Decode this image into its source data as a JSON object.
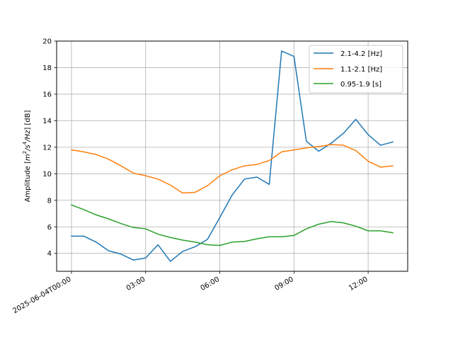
{
  "chart_data": {
    "type": "line",
    "title": "",
    "xlabel": "",
    "ylabel": "Amplitude [m²/s⁴/Hz] [dB]",
    "ylabel_parts": {
      "prefix": "Amplitude [",
      "m": "m",
      "exp2": "2",
      "s": "/s",
      "exp4": "4",
      "hz": "/Hz",
      "suffix": "] [dB]"
    },
    "grid": true,
    "legend_position": "top-right",
    "x_hours_range": [
      -0.6,
      13.6
    ],
    "ylim": [
      2.65,
      20
    ],
    "x_tick_hours": [
      0,
      3,
      6,
      9,
      12
    ],
    "x_tick_labels": [
      "2025-06-04T00:00",
      "03:00",
      "06:00",
      "09:00",
      "12:00"
    ],
    "y_ticks": [
      4,
      6,
      8,
      10,
      12,
      14,
      16,
      18,
      20
    ],
    "y_tick_labels": [
      "4",
      "6",
      "8",
      "10",
      "12",
      "14",
      "16",
      "18",
      "20"
    ],
    "x_hours": [
      0,
      0.5,
      1,
      1.5,
      2,
      2.5,
      3,
      3.5,
      4,
      4.5,
      5,
      5.5,
      6,
      6.5,
      7,
      7.5,
      8,
      8.5,
      9,
      9.5,
      10,
      10.5,
      11,
      11.5,
      12,
      12.5,
      13
    ],
    "series": [
      {
        "name": "2.1-4.2 [Hz]",
        "color": "#1f77b4",
        "values": [
          5.3,
          5.3,
          4.85,
          4.2,
          3.95,
          3.5,
          3.65,
          4.65,
          3.4,
          4.15,
          4.5,
          5.05,
          6.7,
          8.4,
          9.6,
          9.75,
          9.2,
          19.25,
          18.85,
          12.45,
          11.7,
          12.3,
          13.05,
          14.1,
          12.95,
          12.15,
          12.4
        ]
      },
      {
        "name": "1.1-2.1 [Hz]",
        "color": "#ff7f0e",
        "values": [
          11.8,
          11.65,
          11.45,
          11.1,
          10.6,
          10.05,
          9.85,
          9.6,
          9.15,
          8.55,
          8.6,
          9.1,
          9.85,
          10.3,
          10.6,
          10.7,
          11.0,
          11.65,
          11.8,
          11.95,
          12.05,
          12.2,
          12.15,
          11.75,
          10.95,
          10.5,
          10.6
        ]
      },
      {
        "name": "0.95-1.9 [s]",
        "color": "#2ca02c",
        "values": [
          7.65,
          7.3,
          6.9,
          6.6,
          6.25,
          5.95,
          5.85,
          5.45,
          5.2,
          5.0,
          4.85,
          4.65,
          4.6,
          4.85,
          4.9,
          5.1,
          5.25,
          5.25,
          5.35,
          5.85,
          6.2,
          6.4,
          6.3,
          6.05,
          5.7,
          5.7,
          5.55
        ]
      }
    ]
  }
}
